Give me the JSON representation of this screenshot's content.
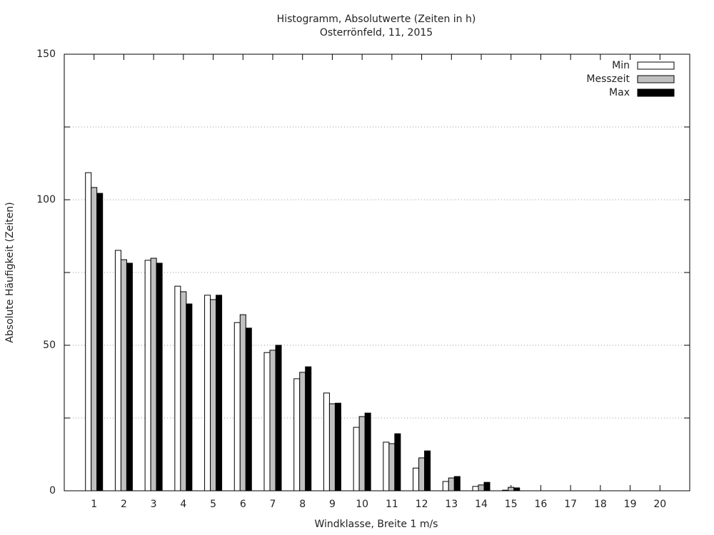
{
  "chart_data": {
    "type": "bar",
    "title": "Histogramm, Absolutwerte (Zeiten in h)",
    "subtitle": "Osterrönfeld, 11, 2015",
    "x_label": "Windklasse, Breite 1 m/s",
    "y_label": "Absolute Häufigkeit (Zeiten)",
    "categories": [
      "1",
      "2",
      "3",
      "4",
      "5",
      "6",
      "7",
      "8",
      "9",
      "10",
      "11",
      "12",
      "13",
      "14",
      "15",
      "16",
      "17",
      "18",
      "19",
      "20"
    ],
    "series": [
      {
        "name": "Min",
        "color": "#ffffff",
        "values": [
          109.3,
          82.6,
          79.2,
          70.3,
          67.2,
          57.8,
          47.5,
          38.5,
          33.6,
          21.8,
          16.7,
          7.8,
          3.2,
          1.5,
          0.2,
          0,
          0,
          0,
          0,
          0
        ]
      },
      {
        "name": "Messzeit",
        "color": "#c0c0c0",
        "values": [
          104.2,
          79.4,
          79.9,
          68.4,
          65.7,
          60.5,
          48.3,
          40.7,
          29.9,
          25.5,
          16.2,
          11.3,
          4.4,
          2.0,
          1.2,
          0,
          0,
          0,
          0,
          0
        ]
      },
      {
        "name": "Max",
        "color": "#000000",
        "values": [
          102.2,
          78.2,
          78.2,
          64.2,
          67.2,
          55.9,
          50.0,
          42.6,
          30.1,
          26.7,
          19.6,
          13.7,
          4.9,
          2.9,
          1.0,
          0,
          0,
          0,
          0,
          0
        ]
      }
    ],
    "ylim": [
      0,
      150
    ],
    "yticks": [
      0,
      50,
      100,
      150
    ],
    "minor_yticks": [
      25,
      75,
      125
    ],
    "grid": true,
    "legend": "top-right"
  }
}
